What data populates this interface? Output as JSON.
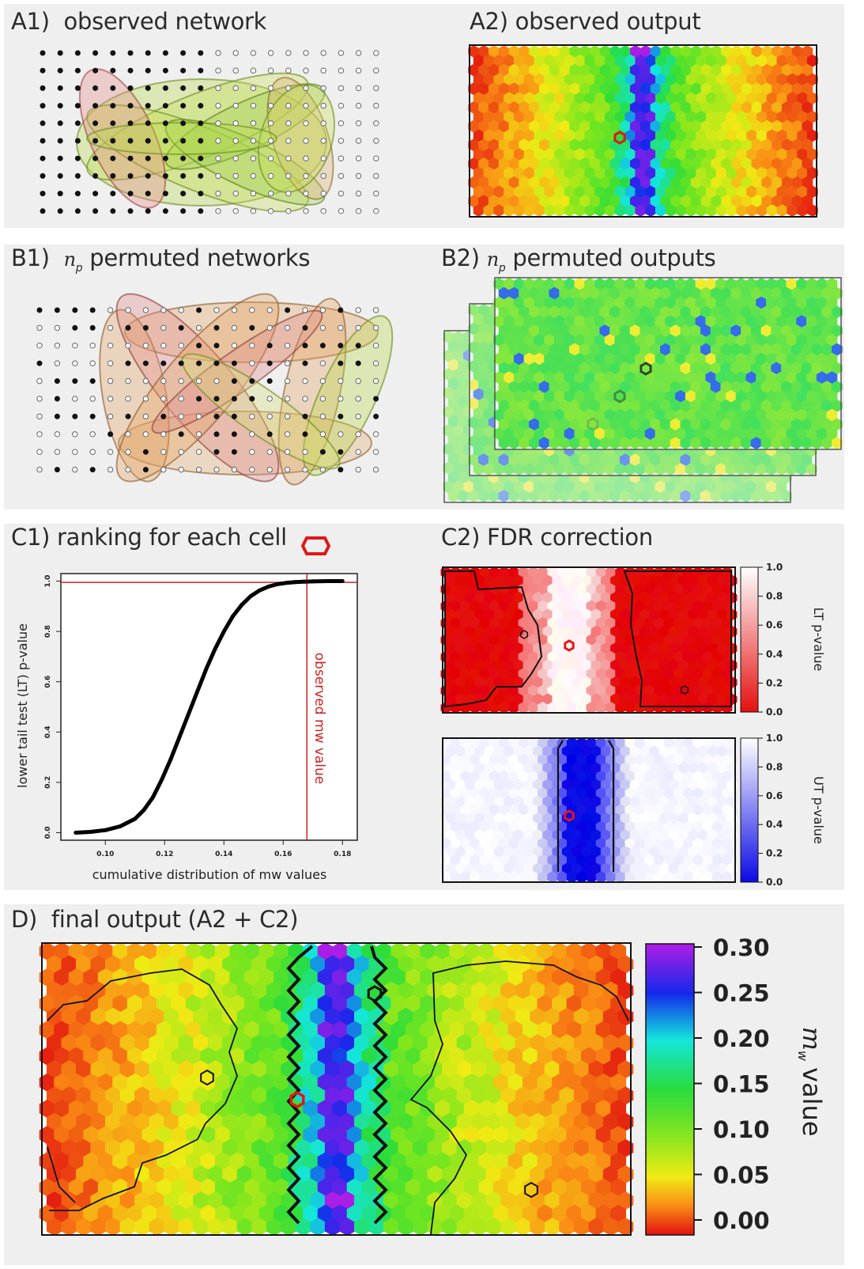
{
  "panels": {
    "a1": {
      "label": "A1)",
      "title": "observed network"
    },
    "a2": {
      "label": "A2)",
      "title": "observed output"
    },
    "b1": {
      "label": "B1)",
      "italic": "n",
      "sub": "p",
      "title": "permuted networks"
    },
    "b2": {
      "label": "B2)",
      "italic": "n",
      "sub": "p",
      "title": "permuted outputs"
    },
    "c1": {
      "label": "C1)",
      "title": "ranking for each cell"
    },
    "c2": {
      "label": "C2)",
      "title": "FDR correction"
    },
    "d": {
      "label": "D)",
      "title": "final output (A2 + C2)"
    }
  },
  "chart_data": {
    "type": "line",
    "xlabel": "cumulative distribution of mw values",
    "ylabel": "lower tail test (LT) p-value",
    "x_ticks": [
      "0.10",
      "0.12",
      "0.14",
      "0.16",
      "0.18"
    ],
    "y_ticks": [
      "0.0",
      "0.2",
      "0.4",
      "0.6",
      "0.8",
      "1.0"
    ],
    "xlim": [
      0.085,
      0.185
    ],
    "ylim": [
      -0.03,
      1.03
    ],
    "vline_label": "observed mw value",
    "vline_x": 0.168,
    "hline_y": 0.995,
    "colors": {
      "curve": "#000000",
      "observed": "#d11f1f"
    },
    "series": [
      {
        "x": [
          0.09,
          0.095,
          0.1,
          0.105,
          0.11,
          0.113,
          0.116,
          0.119,
          0.122,
          0.125,
          0.128,
          0.131,
          0.134,
          0.137,
          0.14,
          0.143,
          0.146,
          0.149,
          0.152,
          0.155,
          0.158,
          0.161,
          0.164,
          0.167,
          0.17,
          0.175,
          0.18
        ],
        "y": [
          0.0,
          0.003,
          0.01,
          0.025,
          0.055,
          0.09,
          0.14,
          0.21,
          0.29,
          0.38,
          0.47,
          0.56,
          0.65,
          0.73,
          0.8,
          0.86,
          0.905,
          0.94,
          0.963,
          0.978,
          0.988,
          0.993,
          0.996,
          0.998,
          0.999,
          1.0,
          1.0
        ]
      }
    ]
  },
  "c2_colorbars": {
    "lt": {
      "label": "LT p-value",
      "ticks": [
        "1.0",
        "0.8",
        "0.6",
        "0.4",
        "0.2",
        "0.0"
      ]
    },
    "ut": {
      "label": "UT p-value",
      "ticks": [
        "1.0",
        "0.8",
        "0.6",
        "0.4",
        "0.2",
        "0.0"
      ]
    }
  },
  "d_colorbar": {
    "label_italic": "m",
    "label_sub": "w",
    "label_rest": "value",
    "ticks": [
      "0.30",
      "0.25",
      "0.20",
      "0.15",
      "0.10",
      "0.05",
      "0.00"
    ]
  }
}
